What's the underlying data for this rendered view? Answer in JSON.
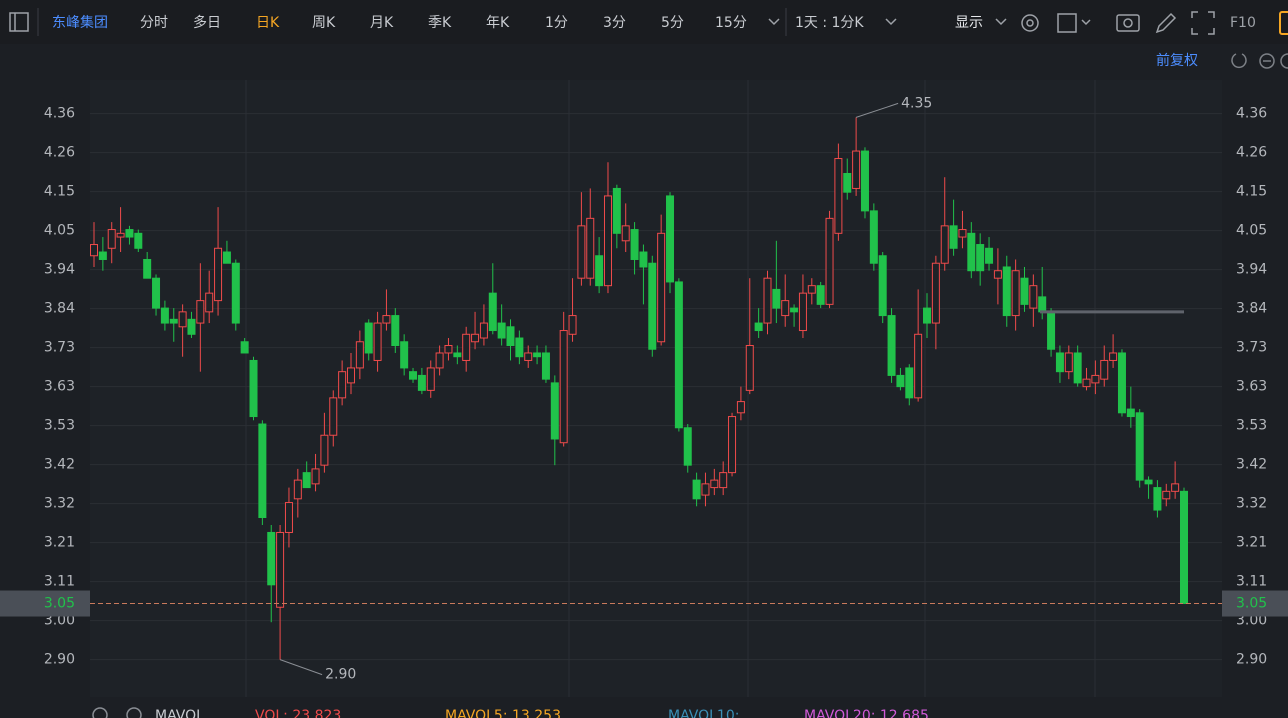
{
  "toolbar": {
    "stock": "东峰集团",
    "periods": [
      "分时",
      "多日",
      "日K",
      "周K",
      "月K",
      "季K",
      "年K",
      "1分",
      "3分",
      "5分",
      "15分"
    ],
    "active_period": "日K",
    "interval": "1天 : 1分K",
    "display": "显示",
    "f10": "F10"
  },
  "adjust": "前复权",
  "indicator": {
    "name": "MAVOL",
    "vol": "VOL: 23.823",
    "mavol5": "MAVOL5: 13.253",
    "mavol10": "MAVOL10:",
    "mavol20": "MAVOL20: 12.685"
  },
  "chart_data": {
    "type": "candlestick",
    "up_color": "#f04b4b",
    "down_color": "#21c24b",
    "grid": true,
    "ylim": [
      2.8,
      4.45
    ],
    "yticks": [
      {
        "value": 2.9,
        "label": "2.90"
      },
      {
        "value": 3.0043,
        "label": "3.00"
      },
      {
        "value": 3.1086,
        "label": "3.11"
      },
      {
        "value": 3.2129,
        "label": "3.21"
      },
      {
        "value": 3.3171,
        "label": "3.32"
      },
      {
        "value": 3.4214,
        "label": "3.42"
      },
      {
        "value": 3.5257,
        "label": "3.53"
      },
      {
        "value": 3.63,
        "label": "3.63"
      },
      {
        "value": 3.7343,
        "label": "3.73"
      },
      {
        "value": 3.8386,
        "label": "3.84"
      },
      {
        "value": 3.9429,
        "label": "3.94"
      },
      {
        "value": 4.0471,
        "label": "4.05"
      },
      {
        "value": 4.1514,
        "label": "4.15"
      },
      {
        "value": 4.2557,
        "label": "4.26"
      },
      {
        "value": 4.36,
        "label": "4.36"
      }
    ],
    "open": [
      3.98,
      3.99,
      4.0,
      4.03,
      4.05,
      4.04,
      3.97,
      3.92,
      3.84,
      3.81,
      3.79,
      3.81,
      3.8,
      3.83,
      3.86,
      3.99,
      3.96,
      3.75,
      3.7,
      3.53,
      3.24,
      3.04,
      3.24,
      3.33,
      3.4,
      3.37,
      3.42,
      3.5,
      3.6,
      3.64,
      3.68,
      3.8,
      3.7,
      3.8,
      3.82,
      3.75,
      3.67,
      3.66,
      3.62,
      3.68,
      3.72,
      3.72,
      3.7,
      3.75,
      3.76,
      3.88,
      3.8,
      3.79,
      3.76,
      3.7,
      3.72,
      3.72,
      3.64,
      3.48,
      3.77,
      3.92,
      3.92,
      3.98,
      3.9,
      4.16,
      4.02,
      4.05,
      3.99,
      3.96,
      3.75,
      4.14,
      3.91,
      3.52,
      3.38,
      3.34,
      3.36,
      3.36,
      3.4,
      3.56,
      3.62,
      3.8,
      3.8,
      3.89,
      3.82,
      3.84,
      3.78,
      3.88,
      3.9,
      3.85,
      4.04,
      4.2,
      4.16,
      4.26,
      4.1,
      3.98,
      3.82,
      3.66,
      3.68,
      3.6,
      3.84,
      3.8,
      3.96,
      4.06,
      4.03,
      4.04,
      4.01,
      4.0,
      3.92,
      3.95,
      3.82,
      3.92,
      3.84,
      3.87,
      3.83,
      3.72,
      3.67,
      3.72,
      3.63,
      3.64,
      3.65,
      3.7,
      3.72,
      3.57,
      3.56,
      3.38,
      3.36,
      3.33,
      3.35,
      3.35
    ],
    "high": [
      4.07,
      4.03,
      4.07,
      4.11,
      4.06,
      4.05,
      3.99,
      3.93,
      3.86,
      3.84,
      3.85,
      3.83,
      3.96,
      3.94,
      4.11,
      4.02,
      3.97,
      3.76,
      3.71,
      3.54,
      3.26,
      3.26,
      3.36,
      3.41,
      3.43,
      3.45,
      3.56,
      3.62,
      3.7,
      3.72,
      3.78,
      3.81,
      3.83,
      3.89,
      3.84,
      3.77,
      3.68,
      3.68,
      3.7,
      3.74,
      3.76,
      3.74,
      3.79,
      3.83,
      3.85,
      3.96,
      3.85,
      3.81,
      3.78,
      3.74,
      3.74,
      3.74,
      3.66,
      3.83,
      3.92,
      4.15,
      4.16,
      4.03,
      4.23,
      4.17,
      4.12,
      4.07,
      4.01,
      3.98,
      4.09,
      4.15,
      3.92,
      3.53,
      3.4,
      3.4,
      3.41,
      3.43,
      3.56,
      3.63,
      3.92,
      3.84,
      3.94,
      4.02,
      3.93,
      3.85,
      3.93,
      3.92,
      3.91,
      4.1,
      4.28,
      4.24,
      4.35,
      4.27,
      4.12,
      3.99,
      3.84,
      3.68,
      3.69,
      3.89,
      3.88,
      3.98,
      4.19,
      4.13,
      4.1,
      4.07,
      4.04,
      4.03,
      4.0,
      3.98,
      3.97,
      3.95,
      3.93,
      3.95,
      3.84,
      3.74,
      3.74,
      3.74,
      3.68,
      3.7,
      3.74,
      3.77,
      3.73,
      3.63,
      3.57,
      3.39,
      3.38,
      3.37,
      3.43,
      3.36
    ],
    "low": [
      3.95,
      3.94,
      3.96,
      3.99,
      4.01,
      3.99,
      3.92,
      3.82,
      3.78,
      3.75,
      3.71,
      3.76,
      3.67,
      3.8,
      3.82,
      3.96,
      3.78,
      3.72,
      3.54,
      3.26,
      3.0,
      2.9,
      3.2,
      3.28,
      3.36,
      3.35,
      3.4,
      3.47,
      3.58,
      3.61,
      3.65,
      3.7,
      3.67,
      3.78,
      3.72,
      3.66,
      3.64,
      3.61,
      3.6,
      3.66,
      3.7,
      3.69,
      3.67,
      3.73,
      3.74,
      3.77,
      3.74,
      3.7,
      3.69,
      3.68,
      3.69,
      3.64,
      3.42,
      3.47,
      3.75,
      3.9,
      3.9,
      3.88,
      3.88,
      4.0,
      3.99,
      3.93,
      3.85,
      3.71,
      3.74,
      3.88,
      3.51,
      3.4,
      3.31,
      3.31,
      3.34,
      3.34,
      3.39,
      3.54,
      3.61,
      3.76,
      3.77,
      3.8,
      3.79,
      3.79,
      3.76,
      3.85,
      3.84,
      3.84,
      4.02,
      4.13,
      4.14,
      4.08,
      3.94,
      3.8,
      3.64,
      3.62,
      3.58,
      3.59,
      3.76,
      3.73,
      3.94,
      3.98,
      4.0,
      3.92,
      3.9,
      3.94,
      3.85,
      3.79,
      3.78,
      3.83,
      3.79,
      3.81,
      3.71,
      3.64,
      3.65,
      3.63,
      3.62,
      3.61,
      3.63,
      3.68,
      3.55,
      3.52,
      3.36,
      3.33,
      3.28,
      3.31,
      3.33,
      3.05
    ],
    "close": [
      4.01,
      3.97,
      4.05,
      4.04,
      4.03,
      4.0,
      3.92,
      3.84,
      3.8,
      3.8,
      3.83,
      3.77,
      3.86,
      3.88,
      4.0,
      3.96,
      3.8,
      3.72,
      3.55,
      3.28,
      3.1,
      3.24,
      3.32,
      3.38,
      3.36,
      3.41,
      3.5,
      3.6,
      3.67,
      3.68,
      3.75,
      3.72,
      3.8,
      3.82,
      3.74,
      3.68,
      3.65,
      3.62,
      3.68,
      3.72,
      3.74,
      3.71,
      3.77,
      3.77,
      3.8,
      3.78,
      3.76,
      3.74,
      3.71,
      3.72,
      3.71,
      3.65,
      3.49,
      3.78,
      3.82,
      4.06,
      4.08,
      3.9,
      4.14,
      4.04,
      4.06,
      3.97,
      3.95,
      3.73,
      4.04,
      3.91,
      3.52,
      3.42,
      3.33,
      3.37,
      3.38,
      3.4,
      3.55,
      3.59,
      3.74,
      3.78,
      3.92,
      3.84,
      3.86,
      3.83,
      3.88,
      3.9,
      3.85,
      4.08,
      4.24,
      4.15,
      4.26,
      4.1,
      3.96,
      3.82,
      3.66,
      3.63,
      3.6,
      3.77,
      3.8,
      3.96,
      4.06,
      4.0,
      4.05,
      3.94,
      3.94,
      3.96,
      3.94,
      3.82,
      3.94,
      3.85,
      3.9,
      3.83,
      3.73,
      3.67,
      3.72,
      3.64,
      3.65,
      3.66,
      3.7,
      3.72,
      3.56,
      3.55,
      3.38,
      3.37,
      3.3,
      3.35,
      3.37,
      3.05
    ],
    "max_label": 4.35,
    "min_label": {
      "value": 2.9,
      "label": "2.90"
    },
    "last_price": 3.05,
    "drawn_line": 3.83
  }
}
